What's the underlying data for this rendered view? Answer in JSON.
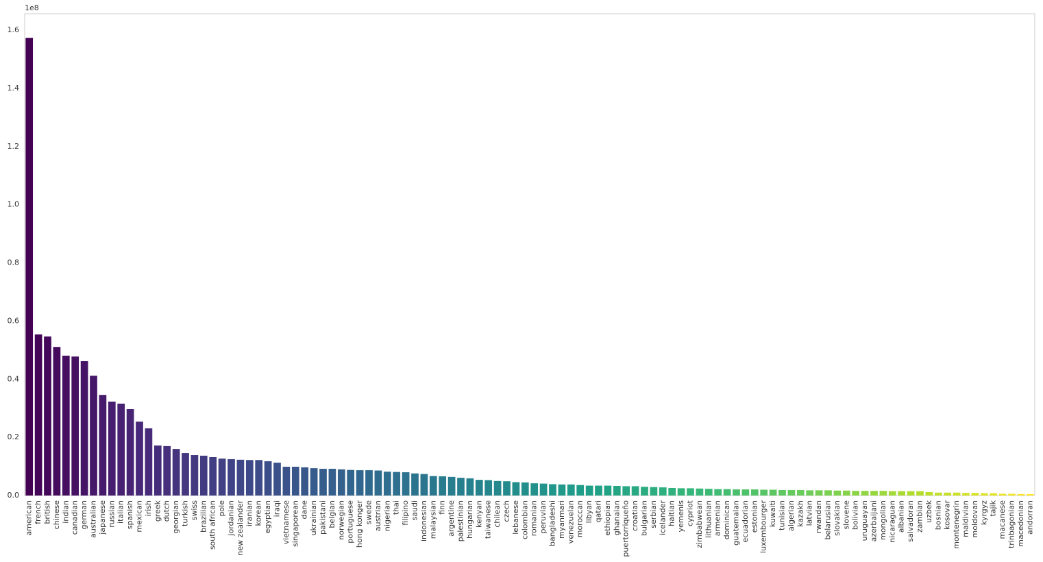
{
  "chart_data": {
    "type": "bar",
    "y_offset_label": "1e8",
    "palette": "viridis",
    "grid": false,
    "ylim": [
      0,
      1.657
    ],
    "yticks": [
      {
        "value": 0,
        "label": "0.0"
      },
      0.2,
      0.4,
      0.6,
      0.8,
      {
        "value": 1,
        "label": "1.0"
      },
      1.2,
      1.4,
      1.6
    ],
    "categories": [
      "american",
      "french",
      "british",
      "chinese",
      "indian",
      "canadian",
      "german",
      "australian",
      "japanese",
      "russian",
      "italian",
      "spanish",
      "mexican",
      "irish",
      "greek",
      "dutch",
      "georgian",
      "turkish",
      "swiss",
      "brazilian",
      "south african",
      "pole",
      "jordanian",
      "new zealander",
      "iranian",
      "korean",
      "egyptian",
      "iraqi",
      "vietnamese",
      "singaporean",
      "dane",
      "ukrainian",
      "pakistani",
      "belgian",
      "norwegian",
      "portuguese",
      "hong konger",
      "swede",
      "austrian",
      "nigerian",
      "thai",
      "filipino",
      "saudi",
      "indonesian",
      "malaysian",
      "finn",
      "argentine",
      "palestinian",
      "hungarian",
      "kenyan",
      "taiwanese",
      "chilean",
      "czech",
      "lebanese",
      "colombian",
      "romanian",
      "peruvian",
      "bangladeshi",
      "myanmari",
      "venezuelan",
      "moroccan",
      "libyan",
      "qatari",
      "ethiopian",
      "ghanaian",
      "puertorriqueño",
      "croatian",
      "bulgarian",
      "serbian",
      "icelander",
      "haitian",
      "yemenis",
      "cypriot",
      "zimbabwean",
      "lithuanian",
      "armenian",
      "dominican",
      "guatemalan",
      "ecuadorian",
      "estonian",
      "luxembourger",
      "kuwaiti",
      "tunisian",
      "algerian",
      "kazakh",
      "latvian",
      "rwandan",
      "belarusian",
      "slovakian",
      "slovene",
      "bolivian",
      "uruguayan",
      "azerbaijani",
      "mongolian",
      "nicaraguan",
      "albanian",
      "salvadoran",
      "zambian",
      "uzbek",
      "bosnian",
      "kosovar",
      "montenegrin",
      "maldivian",
      "moldovan",
      "kyrgyz",
      "tajik",
      "macanese",
      "trinbagonian",
      "macedonian",
      "andorran"
    ],
    "values": [
      1.574,
      0.554,
      0.547,
      0.511,
      0.481,
      0.478,
      0.462,
      0.412,
      0.346,
      0.323,
      0.316,
      0.297,
      0.254,
      0.231,
      0.172,
      0.17,
      0.16,
      0.146,
      0.139,
      0.137,
      0.132,
      0.127,
      0.125,
      0.123,
      0.122,
      0.122,
      0.118,
      0.113,
      0.099,
      0.099,
      0.097,
      0.094,
      0.092,
      0.092,
      0.09,
      0.088,
      0.087,
      0.087,
      0.086,
      0.082,
      0.081,
      0.08,
      0.076,
      0.074,
      0.067,
      0.066,
      0.064,
      0.061,
      0.059,
      0.054,
      0.053,
      0.05,
      0.049,
      0.046,
      0.045,
      0.042,
      0.041,
      0.039,
      0.038,
      0.038,
      0.036,
      0.034,
      0.034,
      0.034,
      0.033,
      0.032,
      0.032,
      0.03,
      0.029,
      0.028,
      0.026,
      0.025,
      0.025,
      0.024,
      0.023,
      0.022,
      0.022,
      0.021,
      0.021,
      0.021,
      0.02,
      0.02,
      0.019,
      0.019,
      0.019,
      0.018,
      0.018,
      0.018,
      0.017,
      0.017,
      0.016,
      0.016,
      0.016,
      0.016,
      0.015,
      0.015,
      0.015,
      0.015,
      0.012,
      0.01,
      0.01,
      0.01,
      0.009,
      0.009,
      0.008,
      0.008,
      0.006,
      0.006,
      0.005,
      0.005
    ]
  }
}
